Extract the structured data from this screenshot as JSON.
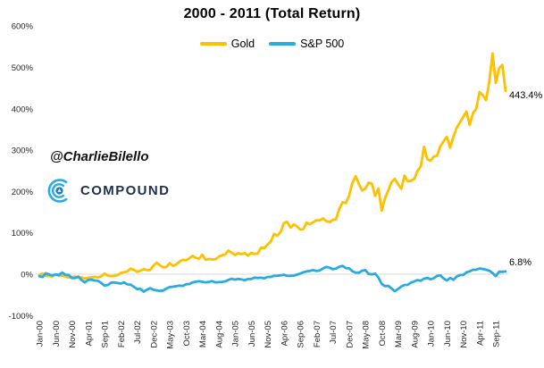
{
  "title": "2000 - 2011 (Total Return)",
  "watermark": {
    "handle": "@CharlieBilello",
    "brand": "COMPOUND"
  },
  "legend": [
    {
      "label": "Gold",
      "color": "#FFC000"
    },
    {
      "label": "S&P 500",
      "color": "#29ABE2"
    }
  ],
  "colors": {
    "gold_line": "#FFC000",
    "sp500_line": "#29ABE2",
    "zero_gridline": "#D9D9D9",
    "tick_text": "#262626",
    "brand_navy": "#20304F",
    "logo_blue": "#29ABE2",
    "logo_core_blue": "#2577BD"
  },
  "end_labels": {
    "gold": "443.4%",
    "sp500": "6.8%"
  },
  "chart_data": {
    "type": "line",
    "title": "2000 - 2011 (Total Return)",
    "x_frequency": "monthly",
    "x_start": "Jan-00",
    "x_end": "Dec-11",
    "x_tick_every": 5,
    "x_tick_labels": [
      "Jan-00",
      "Jun-00",
      "Nov-00",
      "Apr-01",
      "Sep-01",
      "Feb-02",
      "Jul-02",
      "Dec-02",
      "May-03",
      "Oct-03",
      "Mar-04",
      "Aug-04",
      "Jan-05",
      "Jun-05",
      "Nov-05",
      "Apr-06",
      "Sep-06",
      "Feb-07",
      "Jul-07",
      "Dec-07",
      "May-08",
      "Oct-08",
      "Mar-09",
      "Aug-09",
      "Jan-10",
      "Jun-10",
      "Nov-10",
      "Apr-11",
      "Sep-11"
    ],
    "y_tick_labels": [
      "600%",
      "500%",
      "400%",
      "300%",
      "200%",
      "100%",
      "0%",
      "-100%"
    ],
    "ylim": [
      -100,
      600
    ],
    "y_unit": "%",
    "grid": "zero-line-only",
    "legend_position": "top-center",
    "series": [
      {
        "name": "Gold",
        "color": "#FFC000",
        "end_label": "443.4%",
        "values": [
          -1.7,
          1.7,
          -4.2,
          -4.5,
          -5.6,
          0.0,
          -4.2,
          -3.8,
          -5.2,
          -8.0,
          -6.6,
          -5.6,
          -8.3,
          -7.6,
          -10.4,
          -8.3,
          -8.0,
          -6.3,
          -7.6,
          -4.9,
          1.7,
          -3.5,
          -4.9,
          -3.8,
          -2.1,
          3.1,
          4.9,
          6.9,
          13.5,
          10.8,
          5.6,
          8.7,
          12.2,
          10.1,
          10.4,
          20.8,
          27.8,
          21.5,
          16.7,
          17.7,
          26.7,
          20.1,
          23.3,
          30.6,
          34.7,
          34.0,
          38.2,
          44.4,
          39.6,
          37.5,
          47.2,
          34.7,
          36.8,
          36.1,
          35.8,
          42.4,
          45.8,
          47.6,
          57.3,
          52.1,
          46.5,
          51.0,
          48.6,
          51.0,
          45.1,
          51.7,
          49.0,
          50.3,
          64.2,
          63.2,
          71.9,
          79.5,
          97.6,
          93.1,
          102.1,
          123.6,
          126.7,
          112.8,
          120.1,
          116.3,
          108.0,
          109.7,
          124.7,
          120.8,
          126.0,
          130.6,
          129.9,
          135.1,
          128.8,
          126.0,
          131.3,
          133.3,
          158.0,
          174.3,
          171.9,
          189.6,
          220.5,
          237.2,
          218.4,
          202.4,
          207.6,
          221.5,
          218.8,
          189.2,
          207.3,
          153.8,
          183.3,
          202.1,
          222.2,
          230.6,
          218.1,
          206.6,
          238.5,
          224.3,
          226.0,
          230.9,
          250.0,
          261.1,
          308.0,
          277.8,
          274.3,
          284.7,
          286.8,
          309.7,
          321.9,
          331.9,
          305.9,
          332.6,
          353.8,
          367.4,
          380.2,
          393.4,
          360.8,
          389.9,
          399.7,
          440.3,
          433.3,
          420.8,
          465.3,
          534.0,
          462.5,
          497.9,
          506.3,
          443.4
        ]
      },
      {
        "name": "S&P 500",
        "color": "#29ABE2",
        "end_label": "6.8%",
        "values": [
          -5.0,
          -6.8,
          2.3,
          -0.8,
          -2.8,
          -0.4,
          -1.9,
          4.1,
          -1.4,
          -1.8,
          -9.5,
          -9.1,
          -5.9,
          -14.5,
          -19.9,
          -13.7,
          -13.1,
          -15.2,
          -16.0,
          -21.3,
          -27.6,
          -26.2,
          -20.6,
          -19.9,
          -21.1,
          -22.6,
          -19.7,
          -24.6,
          -25.1,
          -30.5,
          -35.9,
          -35.4,
          -42.4,
          -37.4,
          -33.7,
          -37.6,
          -39.2,
          -40.1,
          -39.5,
          -34.5,
          -31.1,
          -30.2,
          -29.0,
          -27.6,
          -28.4,
          -24.3,
          -23.7,
          -19.7,
          -18.2,
          -17.1,
          -18.3,
          -19.6,
          -18.5,
          -16.9,
          -19.7,
          -19.3,
          -18.5,
          -17.2,
          -13.9,
          -10.9,
          -13.1,
          -11.2,
          -12.8,
          -14.4,
          -11.7,
          -11.6,
          -8.3,
          -9.1,
          -8.4,
          -9.9,
          -6.5,
          -6.5,
          -4.0,
          -3.8,
          -2.6,
          -1.3,
          -4.1,
          -4.0,
          -3.4,
          -1.1,
          1.5,
          4.8,
          6.8,
          8.3,
          9.9,
          7.8,
          9.0,
          13.8,
          17.8,
          15.8,
          12.2,
          13.9,
          18.2,
          20.1,
          15.0,
          14.2,
          7.4,
          3.9,
          3.4,
          8.5,
          9.9,
          0.6,
          -0.2,
          1.2,
          -7.8,
          -23.3,
          -28.8,
          -28.1,
          -34.1,
          -41.1,
          -36.0,
          -29.8,
          -25.9,
          -25.8,
          -20.2,
          -17.3,
          -14.2,
          -15.8,
          -10.8,
          -9.1,
          -12.3,
          -9.6,
          -4.1,
          -2.6,
          -10.4,
          -15.1,
          -9.2,
          -13.3,
          -5.6,
          -2.0,
          -2.0,
          4.5,
          7.0,
          10.7,
          10.7,
          14.0,
          12.7,
          10.8,
          8.6,
          2.7,
          -4.5,
          6.0,
          5.8,
          6.8
        ]
      }
    ]
  }
}
